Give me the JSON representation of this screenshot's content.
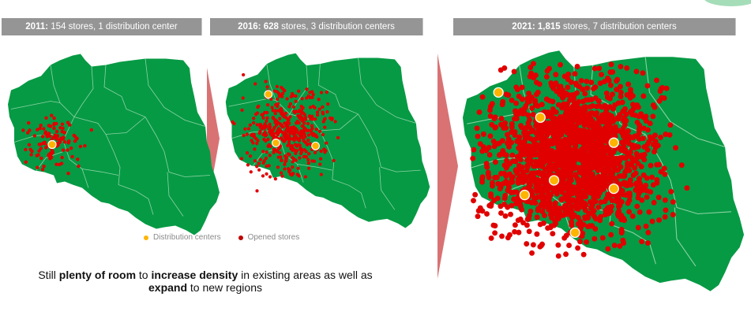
{
  "headers": [
    {
      "year": "2011:",
      "rest": " 154 stores, 1 distribution center"
    },
    {
      "year": "2016: 628",
      "rest": " stores, 3 distribution centers"
    },
    {
      "year": "2021: 1,815",
      "rest": " stores, 7 distribution centers"
    }
  ],
  "legend": {
    "distribution_centers": "Distribution centers",
    "opened_stores": "Opened stores"
  },
  "caption": {
    "p1": "Still ",
    "b1": "plenty of room",
    "p2": " to ",
    "b2": "increase density",
    "p3": " in existing areas as well as",
    "b3": "expand",
    "p4": " to new regions"
  },
  "colors": {
    "map_fill": "#069a44",
    "region_border": "#8fd3a6",
    "store_dot": "#e00000",
    "dc_dot": "#ffb400",
    "arrow": "#d97273",
    "header_bg": "#959595"
  },
  "maps": [
    {
      "year": 2011,
      "stores": 154,
      "distribution_centers": 1
    },
    {
      "year": 2016,
      "stores": 628,
      "distribution_centers": 3
    },
    {
      "year": 2021,
      "stores": 1815,
      "distribution_centers": 7
    }
  ]
}
